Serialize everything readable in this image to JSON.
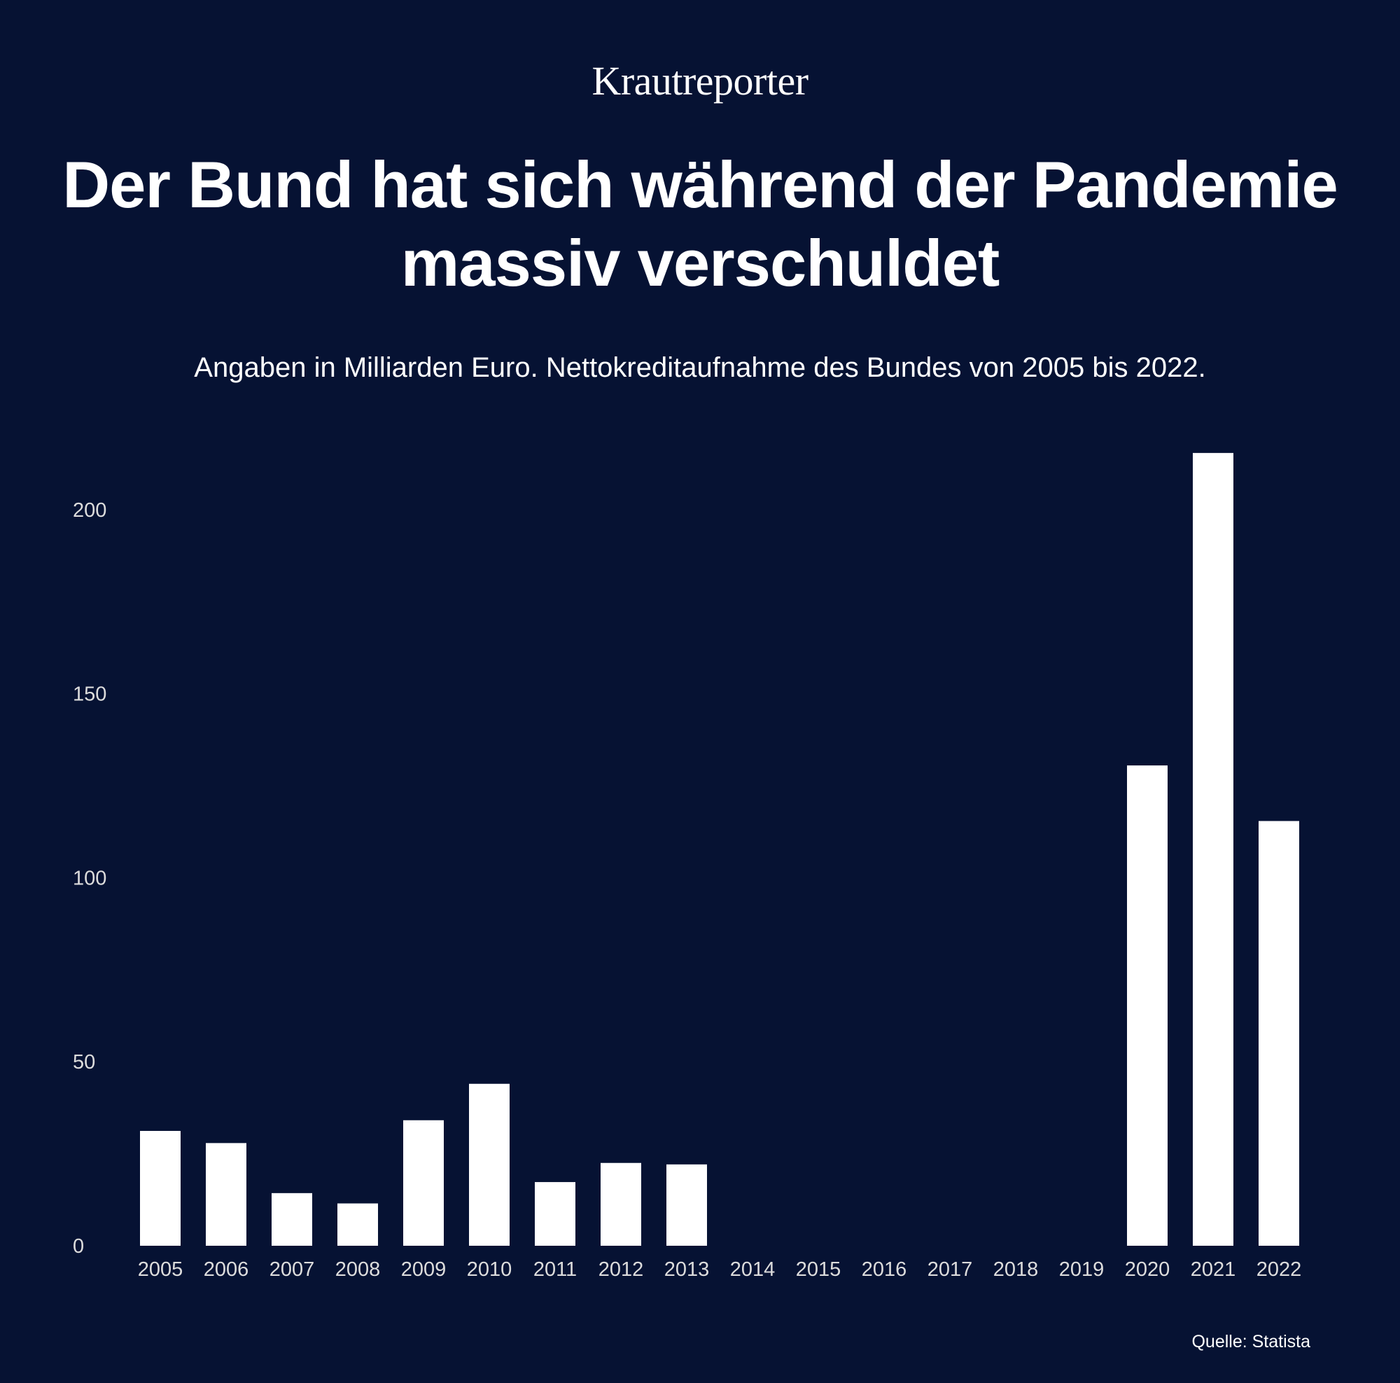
{
  "brand": "Krautreporter",
  "source": "Quelle: Statista",
  "colors": {
    "background": "#061233",
    "bar": "#ffffff",
    "text": "#ffffff",
    "tick_text": "#dcdcdc"
  },
  "chart_data": {
    "type": "bar",
    "title": "Der Bund hat sich während der Pandemie massiv verschuldet",
    "subtitle": "Angaben in Milliarden Euro. Nettokreditaufnahme des Bundes von 2005 bis 2022.",
    "xlabel": "",
    "ylabel": "",
    "categories": [
      "2005",
      "2006",
      "2007",
      "2008",
      "2009",
      "2010",
      "2011",
      "2012",
      "2013",
      "2014",
      "2015",
      "2016",
      "2017",
      "2018",
      "2019",
      "2020",
      "2021",
      "2022"
    ],
    "values": [
      31.2,
      27.9,
      14.3,
      11.5,
      34.1,
      44.0,
      17.3,
      22.5,
      22.1,
      0,
      0,
      0,
      0,
      0,
      0,
      130.5,
      215.4,
      115.4
    ],
    "ylim": [
      0,
      215
    ],
    "yticks": [
      "0",
      "50",
      "100",
      "150",
      "200"
    ],
    "grid": false,
    "legend": "none"
  }
}
